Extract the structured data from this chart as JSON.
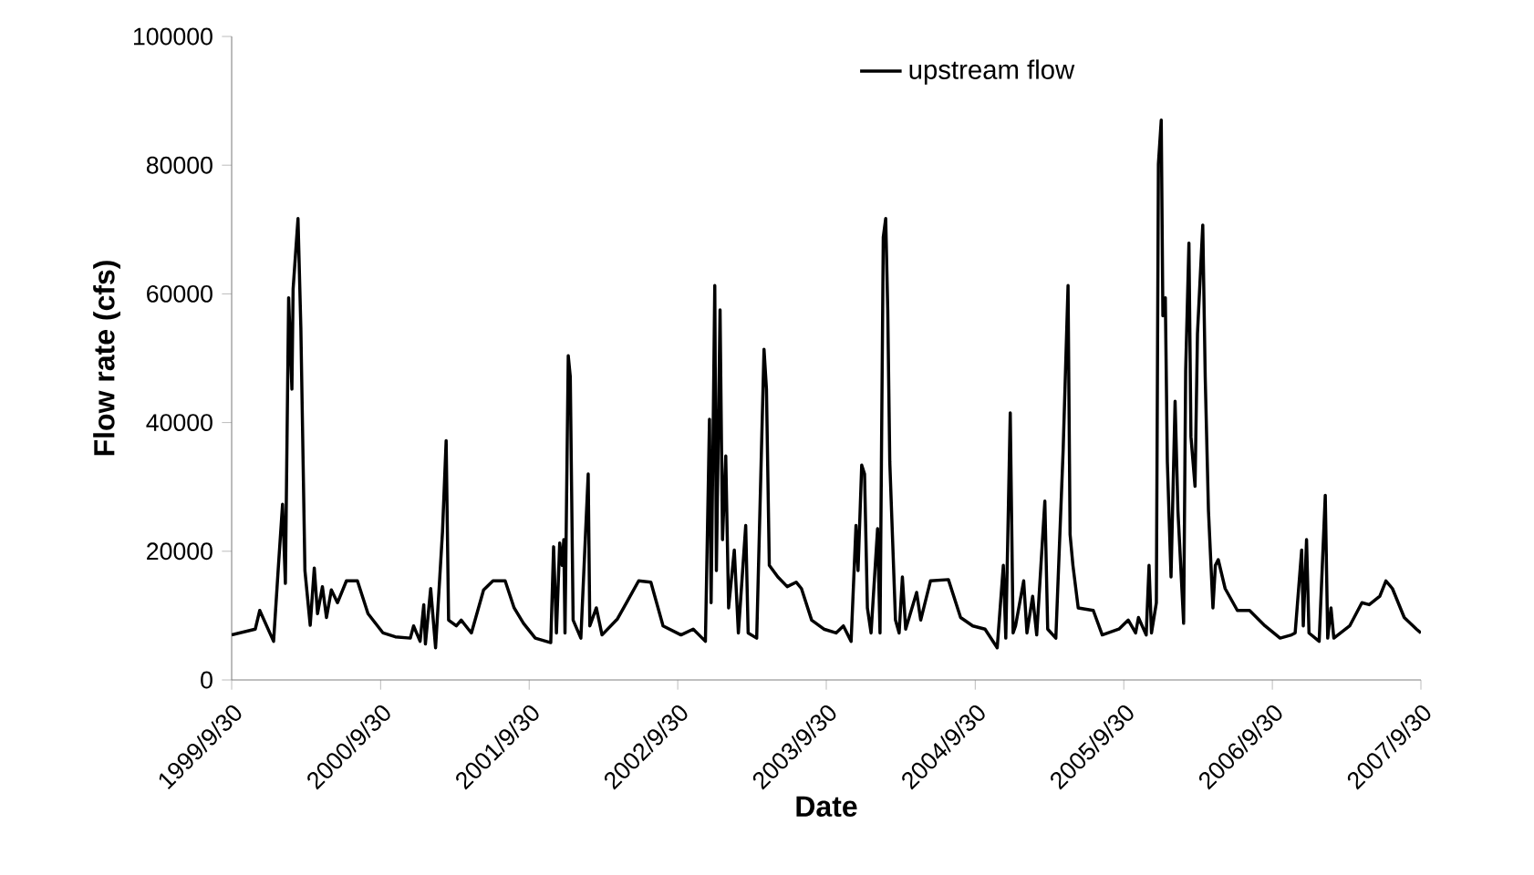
{
  "chart_data": {
    "type": "line",
    "xlabel": "Date",
    "ylabel": "Flow rate (cfs)",
    "legend": "top",
    "marker": "none",
    "line_style": "solid",
    "xlim": [
      "1999-09-30",
      "2007-09-30"
    ],
    "xticks": [
      {
        "value": "1999-09-30",
        "label": "1999/9/30"
      },
      {
        "value": "2000-09-30",
        "label": "2000/9/30"
      },
      {
        "value": "2001-09-30",
        "label": "2001/9/30"
      },
      {
        "value": "2002-09-30",
        "label": "2002/9/30"
      },
      {
        "value": "2003-09-30",
        "label": "2003/9/30"
      },
      {
        "value": "2004-09-30",
        "label": "2004/9/30"
      },
      {
        "value": "2005-09-30",
        "label": "2005/9/30"
      },
      {
        "value": "2006-09-30",
        "label": "2006/9/30"
      },
      {
        "value": "2007-09-30",
        "label": "2007/9/30"
      }
    ],
    "ylim": [
      0,
      100000
    ],
    "yticks": [
      0,
      20000,
      40000,
      60000,
      80000,
      100000
    ],
    "x": [
      "1999-09-30",
      "1999-11-27",
      "1999-12-08",
      "2000-01-11",
      "2000-01-23",
      "2000-02-02",
      "2000-02-09",
      "2000-02-17",
      "2000-02-25",
      "2000-02-28",
      "2000-03-11",
      "2000-03-18",
      "2000-03-28",
      "2000-04-10",
      "2000-04-20",
      "2000-04-28",
      "2000-05-10",
      "2000-05-20",
      "2000-06-01",
      "2000-06-16",
      "2000-07-08",
      "2000-08-04",
      "2000-08-30",
      "2000-10-06",
      "2000-11-05",
      "2000-12-12",
      "2000-12-20",
      "2001-01-05",
      "2001-01-14",
      "2001-01-18",
      "2001-01-31",
      "2001-02-12",
      "2001-03-01",
      "2001-03-10",
      "2001-03-16",
      "2001-04-04",
      "2001-04-16",
      "2001-05-11",
      "2001-06-10",
      "2001-07-03",
      "2001-08-02",
      "2001-08-24",
      "2001-09-16",
      "2001-10-15",
      "2001-11-22",
      "2001-11-29",
      "2001-12-06",
      "2001-12-14",
      "2001-12-20",
      "2001-12-24",
      "2001-12-27",
      "2002-01-04",
      "2002-01-09",
      "2002-01-16",
      "2002-02-04",
      "2002-02-22",
      "2002-02-26",
      "2002-03-14",
      "2002-03-28",
      "2002-05-05",
      "2002-05-27",
      "2002-06-26",
      "2002-07-26",
      "2002-08-25",
      "2002-10-08",
      "2002-11-07",
      "2002-12-07",
      "2002-12-17",
      "2002-12-21",
      "2002-12-26",
      "2002-12-30",
      "2003-01-03",
      "2003-01-12",
      "2003-01-18",
      "2003-01-26",
      "2003-02-02",
      "2003-02-16",
      "2003-02-26",
      "2003-03-16",
      "2003-03-22",
      "2003-04-12",
      "2003-04-30",
      "2003-05-06",
      "2003-05-13",
      "2003-06-03",
      "2003-06-26",
      "2003-07-18",
      "2003-07-31",
      "2003-08-25",
      "2003-09-24",
      "2003-10-24",
      "2003-11-11",
      "2003-11-30",
      "2003-12-12",
      "2003-12-17",
      "2003-12-26",
      "2004-01-02",
      "2004-01-09",
      "2004-01-18",
      "2004-02-03",
      "2004-02-09",
      "2004-02-17",
      "2004-02-23",
      "2004-02-28",
      "2004-03-04",
      "2004-03-18",
      "2004-03-27",
      "2004-04-04",
      "2004-04-12",
      "2004-05-09",
      "2004-05-19",
      "2004-06-12",
      "2004-07-26",
      "2004-08-25",
      "2004-09-24",
      "2004-10-24",
      "2004-11-23",
      "2004-12-08",
      "2004-12-14",
      "2004-12-25",
      "2005-01-01",
      "2005-01-07",
      "2005-01-27",
      "2005-02-04",
      "2005-02-18",
      "2005-02-28",
      "2005-03-20",
      "2005-03-27",
      "2005-04-16",
      "2005-05-04",
      "2005-05-16",
      "2005-05-21",
      "2005-05-28",
      "2005-06-10",
      "2005-07-17",
      "2005-08-08",
      "2005-09-18",
      "2005-10-11",
      "2005-10-29",
      "2005-11-05",
      "2005-11-24",
      "2005-12-01",
      "2005-12-07",
      "2005-12-19",
      "2005-12-24",
      "2005-12-31",
      "2006-01-04",
      "2006-01-10",
      "2006-01-15",
      "2006-01-24",
      "2006-02-03",
      "2006-02-10",
      "2006-02-24",
      "2006-03-01",
      "2006-03-09",
      "2006-03-14",
      "2006-03-24",
      "2006-03-30",
      "2006-04-12",
      "2006-04-18",
      "2006-04-26",
      "2006-05-07",
      "2006-05-13",
      "2006-05-20",
      "2006-06-06",
      "2006-07-06",
      "2006-08-05",
      "2006-09-12",
      "2006-10-19",
      "2006-11-16",
      "2006-11-25",
      "2006-12-11",
      "2006-12-15",
      "2006-12-23",
      "2006-12-29",
      "2007-01-23",
      "2007-02-07",
      "2007-02-13",
      "2007-02-21",
      "2007-02-28",
      "2007-04-08",
      "2007-05-08",
      "2007-05-26",
      "2007-06-21",
      "2007-07-06",
      "2007-07-22",
      "2007-08-20",
      "2007-09-19",
      "2007-09-30"
    ],
    "series": [
      {
        "name": "upstream flow",
        "color": "#000000",
        "values": [
          7000,
          7900,
          10800,
          6000,
          17800,
          27300,
          15000,
          59400,
          45200,
          60800,
          71700,
          54700,
          17000,
          8500,
          17400,
          10300,
          14500,
          9700,
          14000,
          12000,
          15400,
          15400,
          10300,
          7300,
          6700,
          6500,
          8400,
          6000,
          11700,
          5600,
          14200,
          5000,
          23000,
          37200,
          9300,
          8400,
          9300,
          7300,
          14000,
          15400,
          15400,
          11200,
          8800,
          6500,
          5800,
          20700,
          7300,
          21300,
          17800,
          21800,
          7300,
          50400,
          47100,
          9300,
          6500,
          32000,
          8400,
          11200,
          7000,
          9500,
          12000,
          15400,
          15200,
          8400,
          7000,
          7900,
          6000,
          40500,
          12000,
          38600,
          61300,
          17000,
          57500,
          21800,
          34800,
          11200,
          20200,
          7300,
          24000,
          7300,
          6500,
          51400,
          45200,
          17800,
          16000,
          14500,
          15200,
          14200,
          9300,
          7900,
          7300,
          8400,
          6000,
          24000,
          17000,
          33400,
          32000,
          11200,
          7300,
          23500,
          7300,
          68800,
          71700,
          57500,
          33900,
          9300,
          7300,
          16000,
          7900,
          13600,
          9300,
          15400,
          15600,
          9700,
          8400,
          7900,
          5000,
          17800,
          6500,
          41500,
          7300,
          8400,
          15400,
          7300,
          13000,
          7000,
          27800,
          7900,
          6500,
          35800,
          61300,
          22600,
          17800,
          11200,
          10800,
          7000,
          7900,
          9300,
          7300,
          9700,
          7000,
          17800,
          7300,
          12000,
          80200,
          87000,
          56600,
          59400,
          33900,
          16000,
          43300,
          26300,
          8800,
          48100,
          67900,
          37800,
          30100,
          53800,
          70700,
          47100,
          26300,
          11200,
          17800,
          18700,
          14200,
          10800,
          10800,
          8400,
          6500,
          7000,
          7300,
          20200,
          8400,
          21800,
          7300,
          6000,
          28700,
          6500,
          11200,
          6500,
          8400,
          12000,
          11700,
          13000,
          15400,
          14200,
          9700,
          7900,
          7300
        ]
      }
    ]
  }
}
